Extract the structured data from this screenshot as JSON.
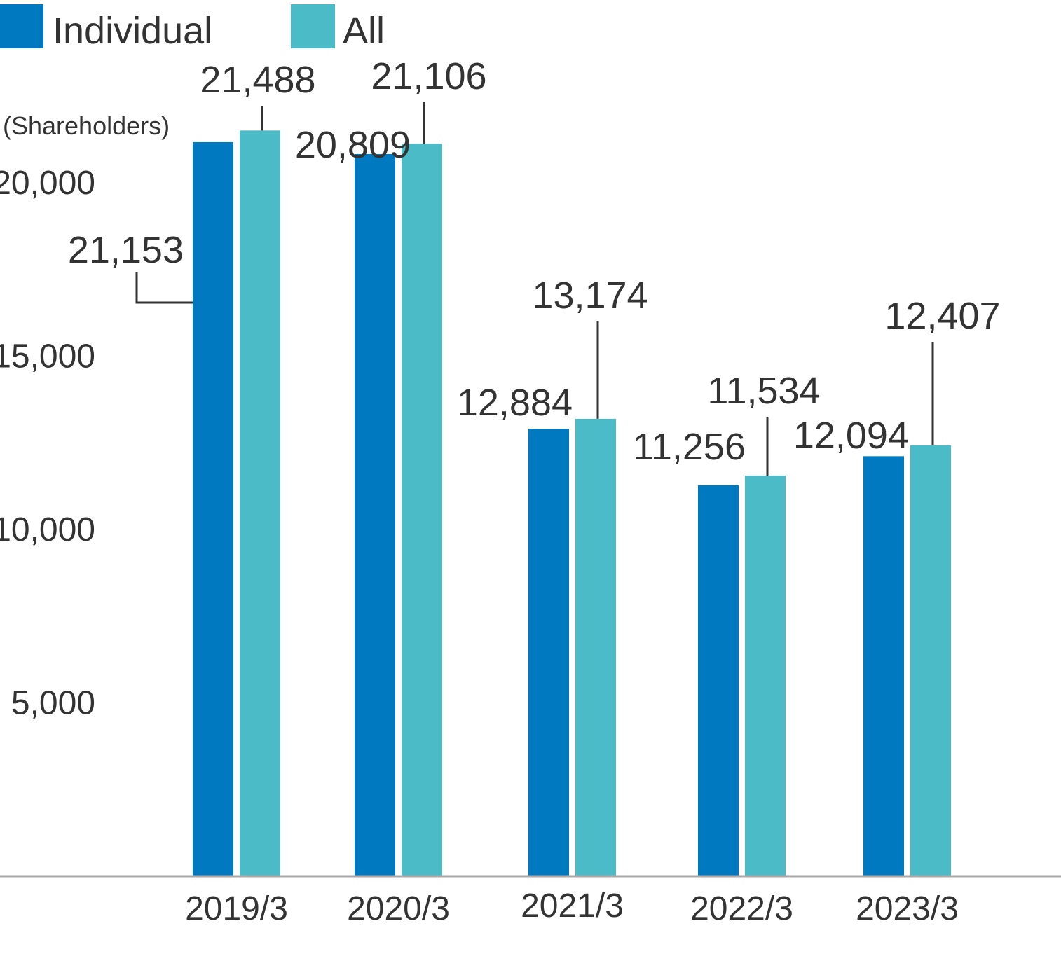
{
  "chart_data": {
    "type": "bar",
    "unit_label": "(Shareholders)",
    "categories": [
      "2019/3",
      "2020/3",
      "2021/3",
      "2022/3",
      "2023/3"
    ],
    "series": [
      {
        "name": "Individual",
        "color": "#0079c1",
        "values": [
          21153,
          20809,
          12884,
          11256,
          12094
        ]
      },
      {
        "name": "All",
        "color": "#4bbbc8",
        "values": [
          21488,
          21106,
          13174,
          11534,
          12407
        ]
      }
    ],
    "value_labels": [
      [
        "21,153",
        "20,809",
        "12,884",
        "11,256",
        "12,094"
      ],
      [
        "21,488",
        "21,106",
        "13,174",
        "11,534",
        "12,407"
      ]
    ],
    "y_ticks": [
      5000,
      10000,
      15000,
      20000
    ],
    "y_tick_labels": [
      "5,000",
      "10,000",
      "15,000",
      "20,000"
    ],
    "ylim": [
      0,
      21500
    ],
    "grid": false,
    "legend_position": "top-left",
    "axis_color": "#aaaaaa",
    "leader_color": "#333333"
  }
}
